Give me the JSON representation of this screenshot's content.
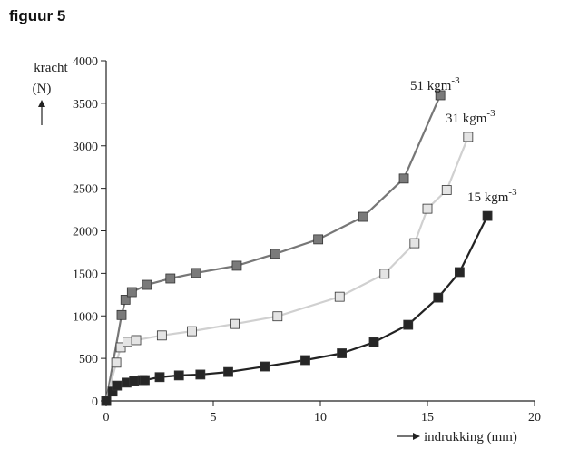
{
  "figure_title": "figuur 5",
  "chart_data": {
    "type": "line",
    "title": "figuur 5",
    "xlabel": "indrukking (mm)",
    "ylabel_line1": "kracht",
    "ylabel_line2": "(N)",
    "xlim": [
      0,
      20
    ],
    "ylim": [
      0,
      4000
    ],
    "xticks": [
      0,
      5,
      10,
      15,
      20
    ],
    "yticks": [
      0,
      500,
      1000,
      1500,
      2000,
      2500,
      3000,
      3500,
      4000
    ],
    "grid": false,
    "series": [
      {
        "name": "51 kgm-3",
        "label_main": "51 kgm",
        "label_sup": "-3",
        "line_color": "#777777",
        "marker_color": "#7a7a7a",
        "x": [
          0,
          0.72,
          0.9,
          1.2,
          1.9,
          3.0,
          4.2,
          6.1,
          7.9,
          9.9,
          12.0,
          13.9,
          15.6
        ],
        "y": [
          0,
          1010,
          1190,
          1280,
          1365,
          1440,
          1505,
          1590,
          1730,
          1900,
          2165,
          2615,
          3595
        ]
      },
      {
        "name": "31 kgm-3",
        "label_main": "31 kgm",
        "label_sup": "-3",
        "line_color": "#d0d0d0",
        "marker_color": "#e4e4e4",
        "x": [
          0,
          0.47,
          0.68,
          1.0,
          1.4,
          2.6,
          4.0,
          6.0,
          8.0,
          10.9,
          13.0,
          14.4,
          15.0,
          15.9,
          16.9
        ],
        "y": [
          0,
          450,
          630,
          695,
          715,
          770,
          820,
          905,
          995,
          1225,
          1495,
          1855,
          2260,
          2480,
          3105
        ]
      },
      {
        "name": "15 kgm-3",
        "label_main": "15 kgm",
        "label_sup": "-3",
        "line_color": "#222222",
        "marker_color": "#262626",
        "x": [
          0,
          0.3,
          0.5,
          0.95,
          1.3,
          1.7,
          1.8,
          2.5,
          3.4,
          4.4,
          5.7,
          7.4,
          9.3,
          11.0,
          12.5,
          14.1,
          15.5,
          16.5,
          17.8
        ],
        "y": [
          0,
          110,
          180,
          215,
          235,
          245,
          245,
          280,
          300,
          310,
          340,
          405,
          480,
          560,
          690,
          895,
          1215,
          1515,
          2175
        ]
      }
    ]
  }
}
